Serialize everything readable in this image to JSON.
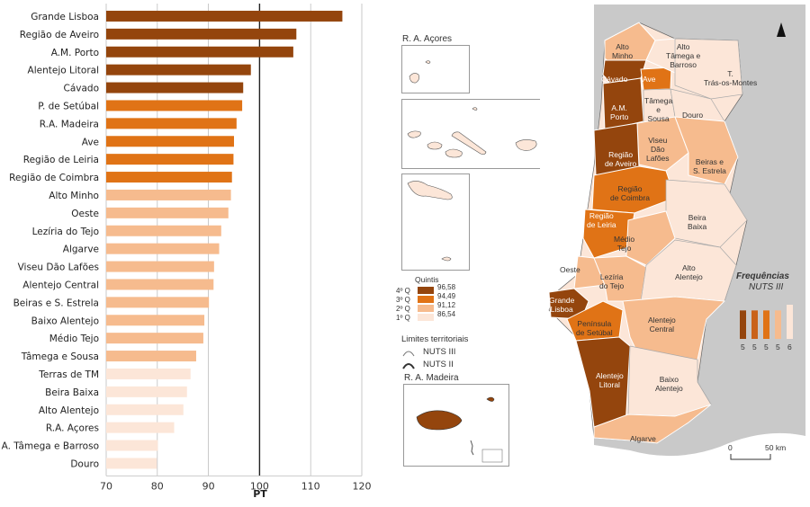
{
  "chart_data": {
    "type": "bar",
    "orientation": "horizontal",
    "categories": [
      "Grande Lisboa",
      "Região de Aveiro",
      "A.M. Porto",
      "Alentejo Litoral",
      "Cávado",
      "P. de Setúbal",
      "R.A. Madeira",
      "Ave",
      "Região de Leiria",
      "Região de Coimbra",
      "Alto Minho",
      "Oeste",
      "Lezíria do Tejo",
      "Algarve",
      "Viseu Dão Lafões",
      "Alentejo Central",
      "Beiras e S. Estrela",
      "Baixo Alentejo",
      "Médio Tejo",
      "Tâmega e Sousa",
      "Terras de TM",
      "Beira Baixa",
      "Alto Alentejo",
      "R.A. Açores",
      "A. Tâmega e Barroso",
      "Douro"
    ],
    "values": [
      116.2,
      107.2,
      106.6,
      98.3,
      96.8,
      96.6,
      95.5,
      95.0,
      94.9,
      94.6,
      94.4,
      93.9,
      92.5,
      92.1,
      91.1,
      91.0,
      90.1,
      89.2,
      89.0,
      87.6,
      86.5,
      85.8,
      85.1,
      83.3,
      80.1,
      79.9
    ],
    "quartile": [
      4,
      4,
      4,
      4,
      4,
      3,
      3,
      3,
      3,
      3,
      2,
      2,
      2,
      2,
      2,
      2,
      2,
      2,
      2,
      2,
      1,
      1,
      1,
      1,
      1,
      1
    ],
    "quartile_colors": {
      "4": "#94450d",
      "3": "#e07316",
      "2": "#f6bb8e",
      "1": "#fce6d8"
    },
    "xlabel": "PT",
    "xlim": [
      70,
      120
    ],
    "xticks": [
      "70",
      "80",
      "90",
      "100",
      "110",
      "120"
    ],
    "reference_line": 100,
    "grid": true
  },
  "map": {
    "acores_title": "R. A. Açores",
    "madeira_title": "R. A. Madeira",
    "quintis_title": "Quintis",
    "quintis": [
      {
        "q": "4º Q",
        "value": "96,58",
        "color": "#94450d"
      },
      {
        "q": "3º Q",
        "value": "94,49",
        "color": "#e07316"
      },
      {
        "q": "2º Q",
        "value": "91,12",
        "color": "#f6bb8e"
      },
      {
        "q": "1º Q",
        "value": "86,54",
        "color": "#fce6d8"
      }
    ],
    "limites_title": "Limites territoriais",
    "limites": [
      "NUTS III",
      "NUTS II"
    ],
    "freq_title": "Frequências",
    "freq_subtitle": "NUTS III",
    "freq_values": [
      "5",
      "5",
      "5",
      "5",
      "6"
    ],
    "freq_colors": [
      "#94450d",
      "#c9621a",
      "#e07316",
      "#f6bb8e",
      "#fce6d8"
    ],
    "scale_0": "0",
    "scale_50": "50 km",
    "regions": {
      "alto_minho": "Alto\nMinho",
      "cavado": "Cávado",
      "ave": "Ave",
      "alto_tamega": "Alto\nTâmega e\nBarroso",
      "terras_tm": "T.\nTrás-os-Montes",
      "am_porto": "A.M.\nPorto",
      "tamega_sousa": "Tâmega\ne\nSousa",
      "douro": "Douro",
      "viseu": "Viseu\nDão\nLafões",
      "aveiro": "Região\nde Aveiro",
      "beiras": "Beiras e\nS. Estrela",
      "coimbra": "Região\nde Coimbra",
      "leiria": "Região\nde Leiria",
      "beira_baixa": "Beira\nBaixa",
      "medio_tejo": "Médio\nTejo",
      "oeste": "Oeste",
      "leziria": "Lezíria\ndo Tejo",
      "alto_alentejo": "Alto\nAlentejo",
      "grande_lisboa": "Grande\nLisboa",
      "setubal": "Península\nde Setúbal",
      "alentejo_central": "Alentejo\nCentral",
      "alentejo_litoral": "Alentejo\nLitoral",
      "baixo_alentejo": "Baixo\nAlentejo",
      "algarve": "Algarve"
    }
  }
}
